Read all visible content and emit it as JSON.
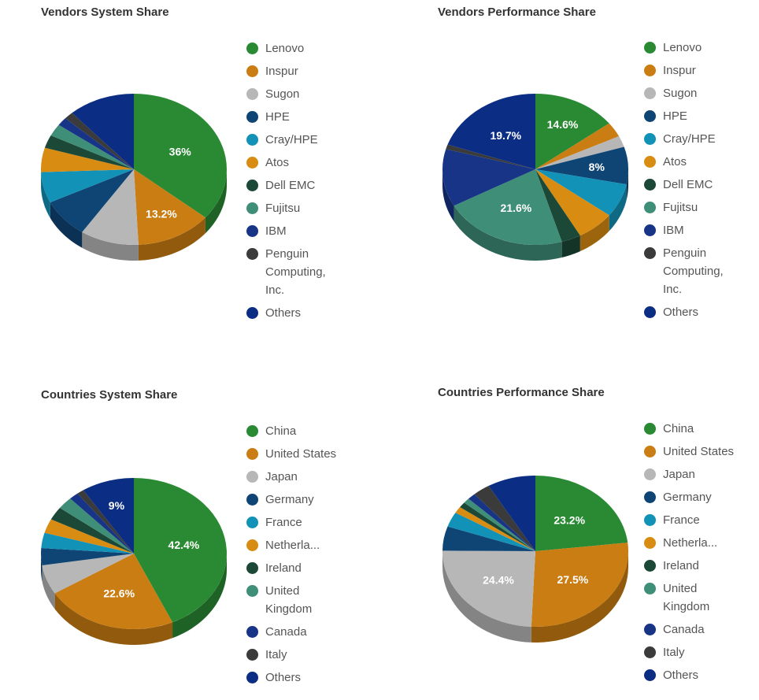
{
  "chart_data": [
    {
      "type": "pie",
      "title": "Vendors System Share",
      "legend_position": "right",
      "slices": [
        {
          "name": "Lenovo",
          "value": 36,
          "color": "#2a8a33",
          "label": "36%"
        },
        {
          "name": "Inspur",
          "value": 13.2,
          "color": "#c97d12",
          "label": "13.2%"
        },
        {
          "name": "Sugon",
          "value": 10.2,
          "color": "#b7b7b7",
          "label": ""
        },
        {
          "name": "HPE",
          "value": 8.4,
          "color": "#0f4575",
          "label": ""
        },
        {
          "name": "Cray/HPE",
          "value": 6.6,
          "color": "#1392b8",
          "label": ""
        },
        {
          "name": "Atos",
          "value": 5.2,
          "color": "#d88c12",
          "label": ""
        },
        {
          "name": "Dell EMC",
          "value": 2.8,
          "color": "#1c4838",
          "label": ""
        },
        {
          "name": "Fujitsu",
          "value": 2.6,
          "color": "#3f8e77",
          "label": ""
        },
        {
          "name": "IBM",
          "value": 1.8,
          "color": "#173487",
          "label": ""
        },
        {
          "name": "Penguin Computing, Inc.",
          "value": 1.6,
          "color": "#3b3b3b",
          "label": ""
        },
        {
          "name": "Others",
          "value": 11.6,
          "color": "#0b2d84",
          "label": ""
        }
      ]
    },
    {
      "type": "pie",
      "title": "Vendors Performance Share",
      "legend_position": "right",
      "slices": [
        {
          "name": "Lenovo",
          "value": 14.6,
          "color": "#2a8a33",
          "label": "14.6%"
        },
        {
          "name": "Inspur",
          "value": 3.2,
          "color": "#c97d12",
          "label": ""
        },
        {
          "name": "Sugon",
          "value": 2.4,
          "color": "#b7b7b7",
          "label": ""
        },
        {
          "name": "HPE",
          "value": 8,
          "color": "#0f4575",
          "label": "8%"
        },
        {
          "name": "Cray/HPE",
          "value": 7.2,
          "color": "#1392b8",
          "label": ""
        },
        {
          "name": "Atos",
          "value": 6.6,
          "color": "#d88c12",
          "label": ""
        },
        {
          "name": "Dell EMC",
          "value": 3.4,
          "color": "#1c4838",
          "label": ""
        },
        {
          "name": "Fujitsu",
          "value": 21.6,
          "color": "#3f8e77",
          "label": "21.6%"
        },
        {
          "name": "IBM",
          "value": 12.3,
          "color": "#173487",
          "label": ""
        },
        {
          "name": "Penguin Computing, Inc.",
          "value": 1,
          "color": "#3b3b3b",
          "label": ""
        },
        {
          "name": "Others",
          "value": 19.7,
          "color": "#0b2d84",
          "label": "19.7%"
        }
      ]
    },
    {
      "type": "pie",
      "title": "Countries System Share",
      "legend_position": "right",
      "slices": [
        {
          "name": "China",
          "value": 42.4,
          "color": "#2a8a33",
          "label": "42.4%"
        },
        {
          "name": "United States",
          "value": 22.6,
          "color": "#c97d12",
          "label": "22.6%"
        },
        {
          "name": "Japan",
          "value": 6.2,
          "color": "#b7b7b7",
          "label": ""
        },
        {
          "name": "Germany",
          "value": 3.6,
          "color": "#0f4575",
          "label": ""
        },
        {
          "name": "France",
          "value": 3.2,
          "color": "#1392b8",
          "label": ""
        },
        {
          "name": "Netherla...",
          "value": 3,
          "color": "#d88c12",
          "label": ""
        },
        {
          "name": "Ireland",
          "value": 2.8,
          "color": "#1c4838",
          "label": ""
        },
        {
          "name": "United Kingdom",
          "value": 2.6,
          "color": "#3f8e77",
          "label": ""
        },
        {
          "name": "Canada",
          "value": 1.6,
          "color": "#173487",
          "label": ""
        },
        {
          "name": "Italy",
          "value": 1.2,
          "color": "#3b3b3b",
          "label": ""
        },
        {
          "name": "Others",
          "value": 9,
          "color": "#0b2d84",
          "label": "9%"
        }
      ]
    },
    {
      "type": "pie",
      "title": "Countries Performance Share",
      "legend_position": "right",
      "slices": [
        {
          "name": "China",
          "value": 23.2,
          "color": "#2a8a33",
          "label": "23.2%"
        },
        {
          "name": "United States",
          "value": 27.5,
          "color": "#c97d12",
          "label": "27.5%"
        },
        {
          "name": "Japan",
          "value": 24.4,
          "color": "#b7b7b7",
          "label": "24.4%"
        },
        {
          "name": "Germany",
          "value": 5.2,
          "color": "#0f4575",
          "label": ""
        },
        {
          "name": "France",
          "value": 3.2,
          "color": "#1392b8",
          "label": ""
        },
        {
          "name": "Netherla...",
          "value": 1.4,
          "color": "#d88c12",
          "label": ""
        },
        {
          "name": "Ireland",
          "value": 1.2,
          "color": "#1c4838",
          "label": ""
        },
        {
          "name": "United Kingdom",
          "value": 1.1,
          "color": "#3f8e77",
          "label": ""
        },
        {
          "name": "Canada",
          "value": 1.4,
          "color": "#173487",
          "label": ""
        },
        {
          "name": "Italy",
          "value": 3,
          "color": "#3b3b3b",
          "label": ""
        },
        {
          "name": "Others",
          "value": 8.4,
          "color": "#0b2d84",
          "label": ""
        }
      ]
    }
  ]
}
